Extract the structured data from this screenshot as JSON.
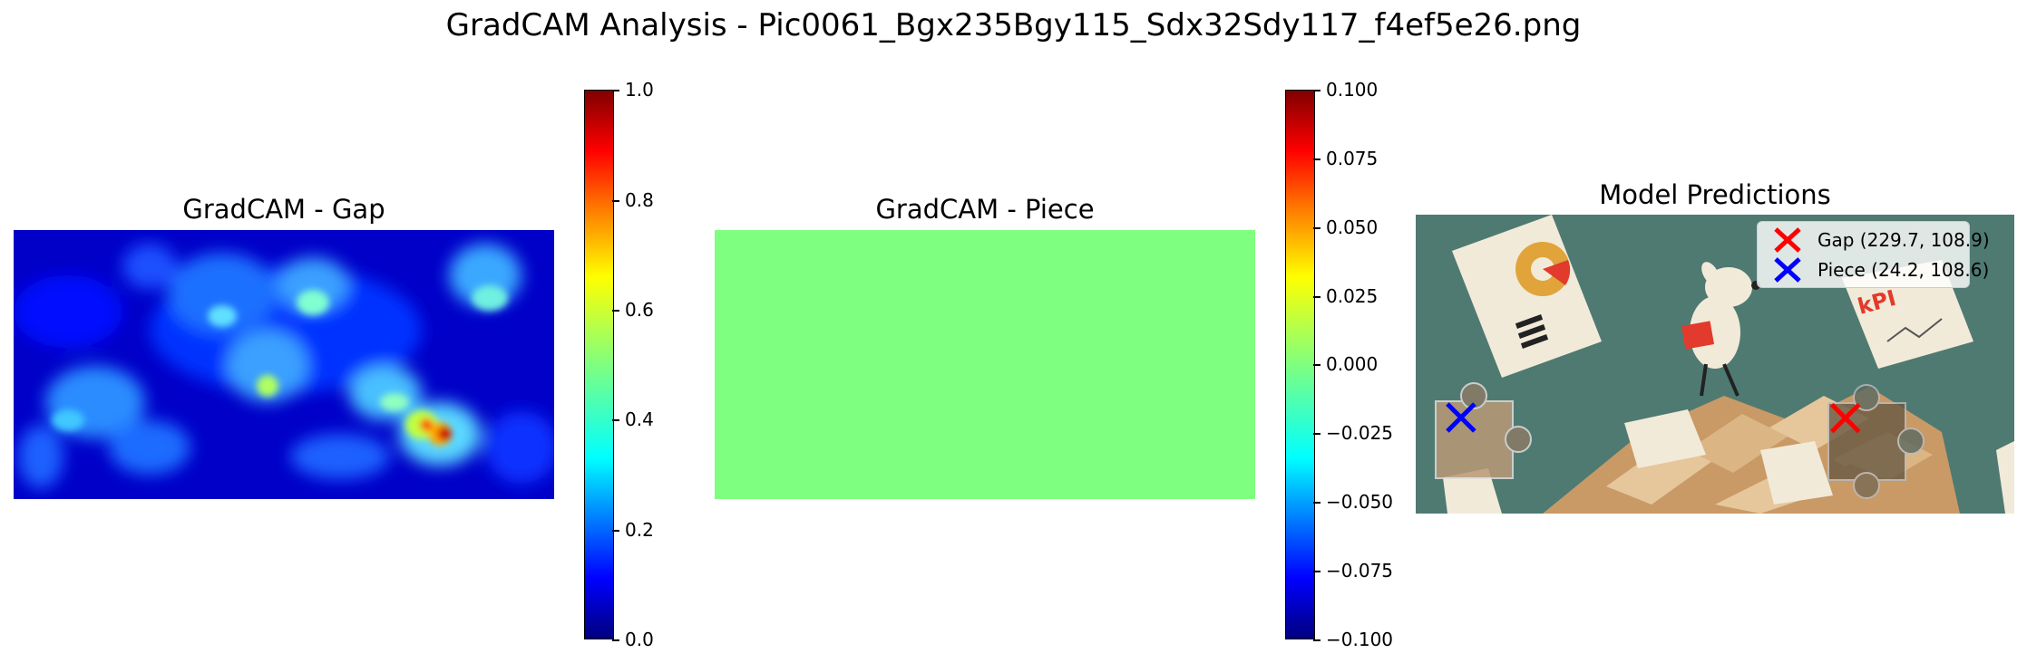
{
  "suptitle": "GradCAM Analysis - Pic0061_Bgx235Bgy115_Sdx32Sdy117_f4ef5e26.png",
  "colormap": "jet",
  "chart_data": [
    {
      "type": "heatmap",
      "title": "GradCAM - Gap",
      "colorbar": {
        "min": 0.0,
        "max": 1.0,
        "ticks": [
          "0.0",
          "0.2",
          "0.4",
          "0.6",
          "0.8",
          "1.0"
        ]
      },
      "hotspots": [
        {
          "x": 0.79,
          "y": 0.76,
          "value": 1.0
        },
        {
          "x": 0.75,
          "y": 0.72,
          "value": 0.85
        },
        {
          "x": 0.47,
          "y": 0.57,
          "value": 0.6
        },
        {
          "x": 0.7,
          "y": 0.58,
          "value": 0.45
        }
      ]
    },
    {
      "type": "heatmap",
      "title": "GradCAM - Piece",
      "uniform_value": 0.0,
      "colorbar": {
        "min": -0.1,
        "max": 0.1,
        "ticks": [
          "−0.100",
          "−0.075",
          "−0.050",
          "−0.025",
          "0.000",
          "0.025",
          "0.050",
          "0.075",
          "0.100"
        ]
      }
    },
    {
      "type": "scatter",
      "title": "Model Predictions",
      "series": [
        {
          "name": "Gap (229.7, 108.9)",
          "x": 229.7,
          "y": 108.9,
          "marker": "x",
          "color": "#ff0000"
        },
        {
          "name": "Piece (24.2, 108.6)",
          "x": 24.2,
          "y": 108.6,
          "marker": "x",
          "color": "#0000ff"
        }
      ],
      "image_extent": {
        "width": 320,
        "height": 160
      },
      "legend_position": "upper right",
      "colors": {
        "bg": "#4f7a72",
        "paper": "#f2ead9",
        "box": "#d9b88a",
        "ring": "#e0a43a",
        "red": "#e23a2c"
      }
    }
  ]
}
